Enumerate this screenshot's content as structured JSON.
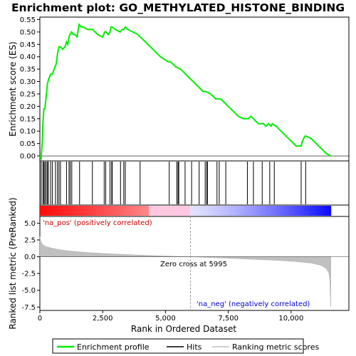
{
  "chart_data": {
    "type": "line",
    "title": "Enrichment plot: GO_METHYLATED_HISTONE_BINDING",
    "colors": {
      "enrichment_line": "#00ee00",
      "hit_line": "#000000",
      "metric_fill": "#c0c0c0",
      "zero_cross_line": "#a0a0a0",
      "pos_label": "#cc0000",
      "neg_label": "#0000cc",
      "axis": "#000000"
    },
    "top_panel": {
      "ylabel": "Enrichment score (ES)",
      "ylim": [
        -0.02,
        0.56
      ],
      "yticks": [
        "0.00",
        "0.05",
        "0.10",
        "0.15",
        "0.20",
        "0.25",
        "0.30",
        "0.35",
        "0.40",
        "0.45",
        "0.50",
        "0.55"
      ],
      "ytick_values": [
        0.0,
        0.05,
        0.1,
        0.15,
        0.2,
        0.25,
        0.3,
        0.35,
        0.4,
        0.45,
        0.5,
        0.55
      ],
      "es_profile": {
        "x": [
          0,
          50,
          100,
          120,
          160,
          200,
          250,
          300,
          350,
          430,
          500,
          600,
          650,
          700,
          760,
          820,
          900,
          1000,
          1060,
          1110,
          1160,
          1200,
          1260,
          1330,
          1400,
          1480,
          1560,
          1640,
          1720,
          1900,
          2100,
          2300,
          2500,
          2580,
          2640,
          2720,
          2790,
          2830,
          2880,
          3000,
          3200,
          3280,
          3340,
          3400,
          3500,
          3700,
          3900,
          4000,
          4200,
          4500,
          4800,
          5100,
          5200,
          5400,
          5600,
          5800,
          6000,
          6200,
          6400,
          6500,
          6600,
          6800,
          7000,
          7100,
          7200,
          7300,
          7500,
          7700,
          7900,
          8100,
          8300,
          8400,
          8500,
          8600,
          8700,
          8900,
          9000,
          9100,
          9200,
          9250,
          9400,
          9600,
          9800,
          10000,
          10200,
          10400,
          10450,
          10550,
          10600,
          10800,
          11000,
          11200,
          11400,
          11580
        ],
        "y": [
          0.0,
          -0.01,
          0.06,
          0.13,
          0.19,
          0.19,
          0.24,
          0.29,
          0.31,
          0.33,
          0.33,
          0.36,
          0.37,
          0.41,
          0.44,
          0.44,
          0.43,
          0.44,
          0.46,
          0.45,
          0.48,
          0.49,
          0.5,
          0.49,
          0.49,
          0.48,
          0.53,
          0.52,
          0.52,
          0.51,
          0.51,
          0.49,
          0.48,
          0.5,
          0.5,
          0.49,
          0.5,
          0.52,
          0.52,
          0.51,
          0.5,
          0.51,
          0.51,
          0.52,
          0.51,
          0.5,
          0.49,
          0.48,
          0.46,
          0.43,
          0.4,
          0.38,
          0.38,
          0.36,
          0.35,
          0.33,
          0.31,
          0.29,
          0.27,
          0.26,
          0.26,
          0.25,
          0.23,
          0.23,
          0.23,
          0.22,
          0.2,
          0.18,
          0.16,
          0.15,
          0.15,
          0.16,
          0.15,
          0.14,
          0.13,
          0.13,
          0.12,
          0.13,
          0.12,
          0.13,
          0.12,
          0.1,
          0.08,
          0.06,
          0.04,
          0.04,
          0.06,
          0.08,
          0.08,
          0.07,
          0.05,
          0.03,
          0.01,
          0.0
        ]
      }
    },
    "hits": [
      50,
      120,
      160,
      200,
      250,
      300,
      340,
      430,
      500,
      620,
      700,
      760,
      820,
      1060,
      1160,
      1210,
      1270,
      1580,
      2090,
      2560,
      2620,
      2790,
      2860,
      2880,
      3210,
      3340,
      3400,
      3990,
      5150,
      5450,
      5500,
      5530,
      5780,
      6040,
      6340,
      6580,
      6640,
      6670,
      7050,
      7140,
      7400,
      8260,
      8500,
      8850,
      9150,
      9330,
      10400,
      10580
    ],
    "ranked_metric": {
      "ylabel": "Ranked list metric (PreRanked)",
      "ylim": [
        -8,
        6
      ],
      "yticks": [
        "5.0",
        "2.5",
        "0.0",
        "-2.5",
        "-5.0",
        "-7.5"
      ],
      "ytick_values": [
        5.0,
        2.5,
        0.0,
        -2.5,
        -5.0,
        -7.5
      ],
      "x": [
        0,
        20,
        60,
        120,
        250,
        500,
        800,
        1200,
        1800,
        2500,
        3500,
        4500,
        5500,
        5995,
        6500,
        7500,
        8500,
        9500,
        10200,
        10800,
        11200,
        11400,
        11500,
        11540,
        11560,
        11580
      ],
      "y": [
        3.0,
        2.5,
        2.1,
        1.8,
        1.5,
        1.25,
        1.05,
        0.85,
        0.65,
        0.48,
        0.32,
        0.18,
        0.05,
        0.0,
        -0.08,
        -0.22,
        -0.38,
        -0.55,
        -0.72,
        -0.95,
        -1.3,
        -1.75,
        -2.4,
        -3.3,
        -5.5,
        -7.5
      ],
      "zero_cross_label": "Zero cross at 5995",
      "zero_cross_x": 5995,
      "pos_label": "'na_pos' (positively correlated)",
      "neg_label": "'na_neg' (negatively correlated)"
    },
    "xlabel": "Rank in Ordered Dataset",
    "xlim": [
      0,
      12300
    ],
    "xticks": [
      "0",
      "2,500",
      "5,000",
      "7,500",
      "10,000"
    ],
    "xtick_values": [
      0,
      2500,
      5000,
      7500,
      10000
    ],
    "legend": {
      "placement": "bottom",
      "items": [
        {
          "label": "Enrichment profile",
          "style": "green-line"
        },
        {
          "label": "Hits",
          "style": "black-line"
        },
        {
          "label": "Ranking metric scores",
          "style": "gray-line"
        }
      ]
    }
  }
}
